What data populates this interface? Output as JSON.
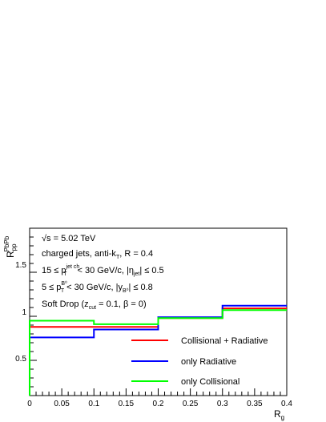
{
  "chart_data": {
    "type": "line",
    "title": "",
    "xlabel": "R_g",
    "ylabel": "R_pp^PbPb",
    "xlim": [
      0,
      0.4
    ],
    "ylim": [
      0.1,
      2.0
    ],
    "x_ticks": [
      "0",
      "0.05",
      "0.1",
      "0.15",
      "0.2",
      "0.25",
      "0.3",
      "0.35",
      "0.4"
    ],
    "y_ticks": [
      "0.5",
      "1",
      "1.5"
    ],
    "bin_edges": [
      0,
      0.1,
      0.2,
      0.3,
      0.4
    ],
    "annotations": [
      "√s = 5.02 TeV",
      "charged jets, anti-k_T, R = 0.4",
      "15 ≤ p_T^jet ch < 30 GeV/c, |η_jet| ≤ 0.5",
      "5 ≤ p_T^B⁰ < 30 GeV/c, |y_B⁰| ≤ 0.8",
      "Soft Drop (z_cut = 0.1, β = 0)"
    ],
    "legend_position": "bottom-right",
    "series": [
      {
        "name": "Collisional + Radiative",
        "color": "#ff0000",
        "values": [
          0.88,
          0.88,
          0.98,
          1.09
        ]
      },
      {
        "name": "only Radiative",
        "color": "#0000ff",
        "values": [
          0.76,
          0.85,
          0.99,
          1.12
        ]
      },
      {
        "name": "only Collisional",
        "color": "#00ff00",
        "values": [
          0.95,
          0.91,
          0.98,
          1.07
        ]
      }
    ]
  }
}
